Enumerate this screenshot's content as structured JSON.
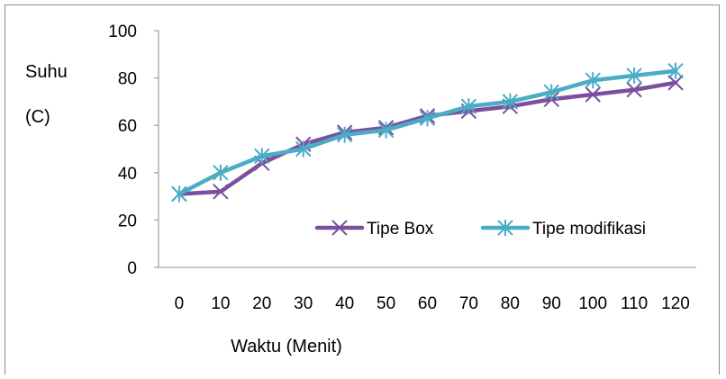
{
  "chart_data": {
    "type": "line",
    "title": "",
    "xlabel": "Waktu (Menit)",
    "ylabel_line1": "Suhu",
    "ylabel_line2": "(C)",
    "categories": [
      "0",
      "10",
      "20",
      "30",
      "40",
      "50",
      "60",
      "70",
      "80",
      "90",
      "100",
      "110",
      "120"
    ],
    "yticks": [
      "0",
      "20",
      "40",
      "60",
      "80",
      "100"
    ],
    "ylim": [
      0,
      100
    ],
    "grid": false,
    "legend_position": "inside-bottom-right",
    "series": [
      {
        "name": "Tipe Box",
        "color": "#7b4f9d",
        "marker": "x-star",
        "values": [
          31,
          32,
          44,
          52,
          57,
          59,
          64,
          66,
          68,
          71,
          73,
          75,
          78
        ]
      },
      {
        "name": "Tipe modifikasi",
        "color": "#4bacc6",
        "marker": "asterisk",
        "values": [
          31,
          40,
          47,
          50,
          56,
          58,
          63,
          68,
          70,
          74,
          79,
          81,
          83
        ]
      }
    ]
  }
}
